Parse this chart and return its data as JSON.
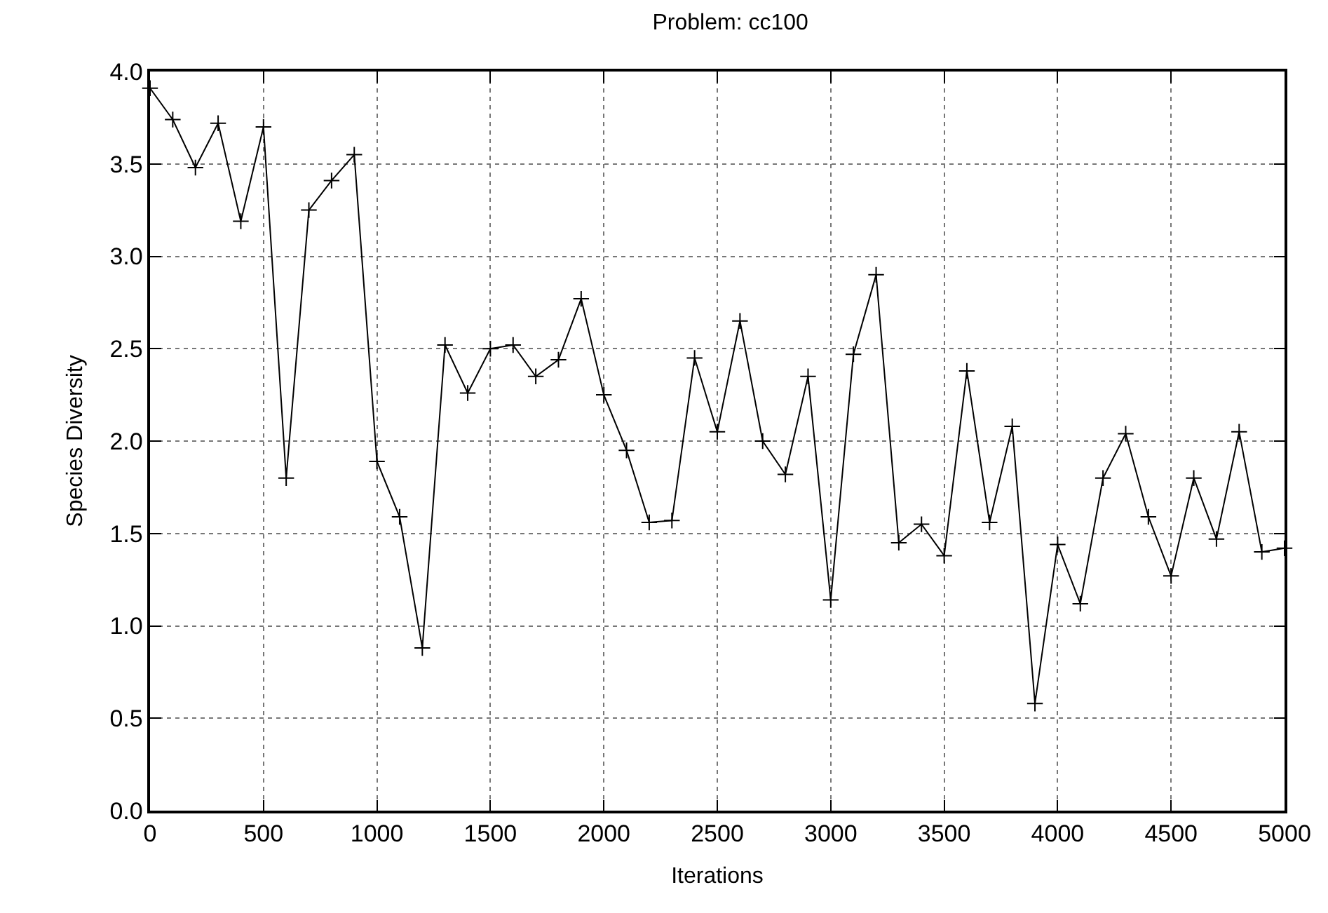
{
  "chart_data": {
    "type": "line",
    "title": "Problem: cc100",
    "xlabel": "Iterations",
    "ylabel": "Species Diversity",
    "x": [
      0,
      100,
      200,
      300,
      400,
      500,
      600,
      700,
      800,
      900,
      1000,
      1100,
      1200,
      1300,
      1400,
      1500,
      1600,
      1700,
      1800,
      1900,
      2000,
      2100,
      2200,
      2300,
      2400,
      2500,
      2600,
      2700,
      2800,
      2900,
      3000,
      3100,
      3200,
      3300,
      3400,
      3500,
      3600,
      3700,
      3800,
      3900,
      4000,
      4100,
      4200,
      4300,
      4400,
      4500,
      4600,
      4700,
      4800,
      4900,
      5000
    ],
    "series": [
      {
        "color": "#000000",
        "values": [
          3.91,
          3.74,
          3.48,
          3.72,
          3.19,
          3.7,
          1.8,
          3.25,
          3.41,
          3.55,
          1.89,
          1.59,
          0.88,
          2.52,
          2.26,
          2.5,
          2.52,
          2.35,
          2.44,
          2.77,
          2.25,
          1.95,
          1.56,
          1.57,
          2.45,
          2.05,
          2.65,
          2.0,
          1.82,
          2.35,
          1.14,
          2.47,
          2.9,
          1.45,
          1.55,
          1.38,
          2.38,
          1.56,
          2.08,
          0.58,
          1.44,
          1.12,
          1.8,
          2.04,
          1.59,
          1.27,
          1.8,
          1.47,
          2.05,
          1.4,
          1.42
        ]
      }
    ],
    "xlim": [
      0,
      5000
    ],
    "xticks": [
      0,
      500,
      1000,
      1500,
      2000,
      2500,
      3000,
      3500,
      4000,
      4500,
      5000
    ],
    "ylim": [
      0,
      4
    ],
    "yticks": [
      {
        "value": 0,
        "label": "0.0"
      },
      {
        "value": 0.5,
        "label": "0.5"
      },
      {
        "value": 1,
        "label": "1.0"
      },
      {
        "value": 1.5,
        "label": "1.5"
      },
      {
        "value": 2,
        "label": "2.0"
      },
      {
        "value": 2.5,
        "label": "2.5"
      },
      {
        "value": 3,
        "label": "3.0"
      },
      {
        "value": 3.5,
        "label": "3.5"
      },
      {
        "value": 4,
        "label": "4.0"
      }
    ],
    "grid": true,
    "marker": "cross",
    "line_style": "solid",
    "legend": false
  }
}
